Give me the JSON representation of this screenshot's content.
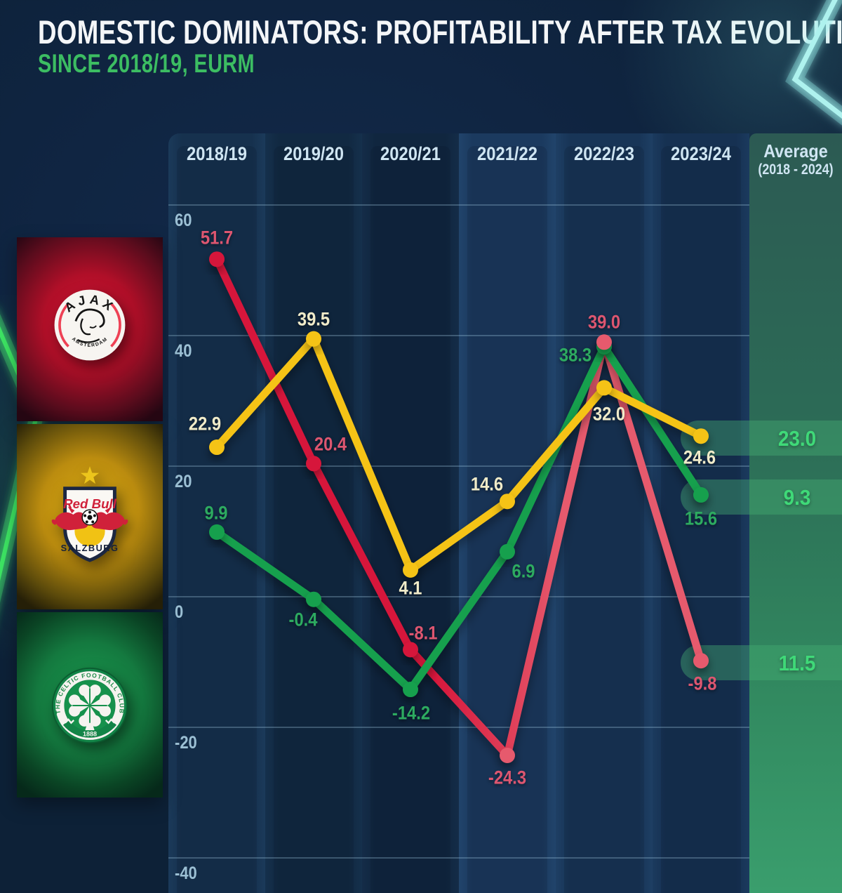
{
  "header": {
    "title": "DOMESTIC DOMINATORS: PROFITABILITY AFTER TAX EVOLUTION",
    "subtitle": "SINCE 2018/19, EURM",
    "title_color": "#f4f6f8",
    "subtitle_color": "#3cbd62"
  },
  "average_column": {
    "title": "Average",
    "subtitle": "(2018 - 2024)"
  },
  "teams": [
    {
      "id": "ajax",
      "name": "Ajax Amsterdam",
      "panel_color": "#c81230",
      "badge": {
        "top_text": "AJAX",
        "bottom_text": "AMSTERDAM"
      }
    },
    {
      "id": "salzburg",
      "name": "Red Bull Salzburg",
      "panel_color": "#d7a818",
      "badge": {
        "top_text": "Red Bull",
        "bottom_text": "SALZBURG"
      }
    },
    {
      "id": "celtic",
      "name": "Celtic FC",
      "panel_color": "#1a9a4e",
      "badge": {
        "ring_text": "THE CELTIC FOOTBALL CLUB",
        "bottom_text": "1888"
      }
    }
  ],
  "chart_data": {
    "type": "line",
    "title": "Profitability after tax evolution since 2018/19 (EURm)",
    "categories": [
      "2018/19",
      "2019/20",
      "2020/21",
      "2021/22",
      "2022/23",
      "2023/24"
    ],
    "yticks": [
      60,
      40,
      20,
      0,
      -20,
      -40
    ],
    "ylim": [
      -48,
      66
    ],
    "grid": true,
    "unit": "EURm",
    "series": [
      {
        "name": "Ajax",
        "color_start": "#d6163a",
        "color_end": "#e65a6d",
        "label_color": "#dd5670",
        "values": [
          51.7,
          20.4,
          -8.1,
          -24.3,
          39.0,
          -9.8
        ],
        "labels": [
          "51.7",
          "20.4",
          "-8.1",
          "-24.3",
          "39.0",
          "-9.8"
        ],
        "average": 11.5,
        "average_label": "11.5"
      },
      {
        "name": "Red Bull Salzburg",
        "color_start": "#f5c313",
        "color_end": "#f5c313",
        "label_color": "#f0ebc9",
        "values": [
          22.9,
          39.5,
          4.1,
          14.6,
          32.0,
          24.6
        ],
        "labels": [
          "22.9",
          "39.5",
          "4.1",
          "14.6",
          "32.0",
          "24.6"
        ],
        "average": 23.0,
        "average_label": "23.0"
      },
      {
        "name": "Celtic",
        "color_start": "#18a04e",
        "color_end": "#18a04e",
        "label_color": "#2dab60",
        "values": [
          9.9,
          -0.4,
          -14.2,
          6.9,
          38.3,
          15.6
        ],
        "labels": [
          "9.9",
          "-0.4",
          "-14.2",
          "6.9",
          "38.3",
          "15.6"
        ],
        "average": 9.3,
        "average_label": "9.3"
      }
    ],
    "average_value_color": "#3fd978",
    "highlight_pill_color": "rgba(70,175,115,0.42)",
    "gridline_labels": [
      "60",
      "40",
      "20",
      "0",
      "-20",
      "-40"
    ]
  }
}
